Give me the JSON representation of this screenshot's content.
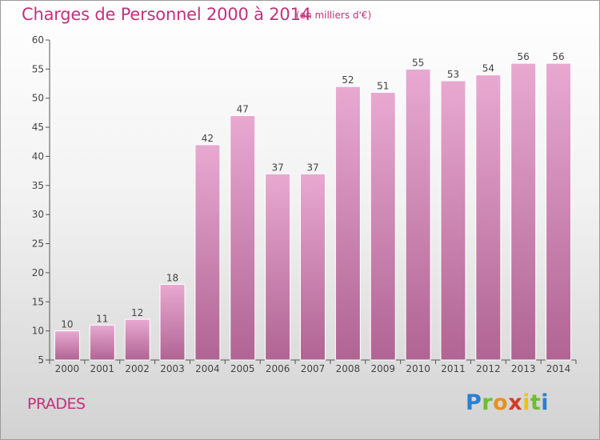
{
  "header": {
    "title": "Charges de Personnel 2000 à 2014",
    "subtitle": "(en milliers d'€)"
  },
  "footer": {
    "commune": "PRADES",
    "logo_text": "Proxiti"
  },
  "colors": {
    "title": "#c2317c",
    "bar_top": "#e8a9d1",
    "bar_bottom": "#b06493",
    "bar_edge": "#ffffff"
  },
  "chart_data": {
    "type": "bar",
    "title": "Charges de Personnel 2000 à 2014",
    "subtitle": "(en milliers d'€)",
    "categories": [
      "2000",
      "2001",
      "2002",
      "2003",
      "2004",
      "2005",
      "2006",
      "2007",
      "2008",
      "2009",
      "2010",
      "2011",
      "2012",
      "2013",
      "2014"
    ],
    "values": [
      10,
      11,
      12,
      18,
      42,
      47,
      37,
      37,
      52,
      51,
      55,
      53,
      54,
      56,
      56
    ],
    "ylim": [
      5,
      60
    ],
    "yticks": [
      5,
      10,
      15,
      20,
      25,
      30,
      35,
      40,
      45,
      50,
      55,
      60
    ],
    "xlabel": "",
    "ylabel": "",
    "grid": false,
    "data_labels": true
  }
}
